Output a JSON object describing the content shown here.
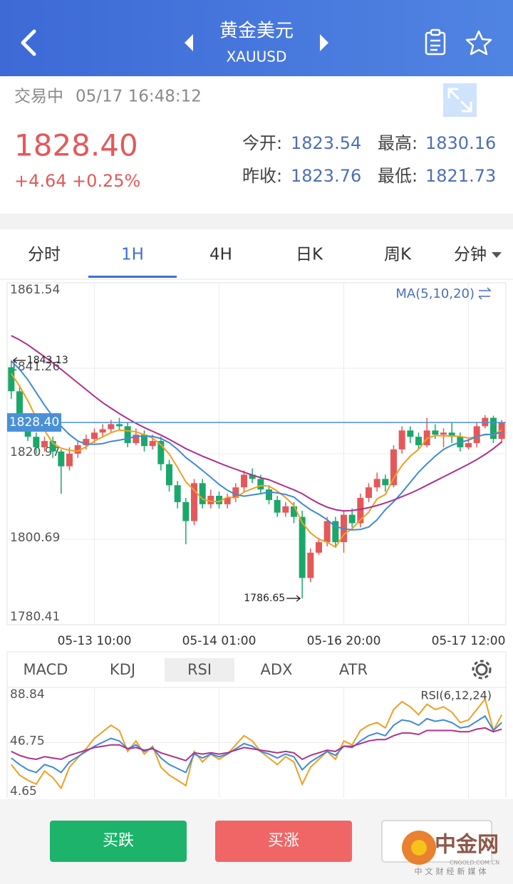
{
  "header": {
    "title": "黄金美元",
    "symbol": "XAUUSD"
  },
  "status": {
    "state": "交易中",
    "time": "05/17 16:48:12"
  },
  "quote": {
    "price": "1828.40",
    "change": "+4.64",
    "change_pct": "+0.25%",
    "stats": [
      {
        "label": "今开:",
        "value": "1823.54"
      },
      {
        "label": "最高:",
        "value": "1830.16"
      },
      {
        "label": "昨收:",
        "value": "1823.76"
      },
      {
        "label": "最低:",
        "value": "1821.73"
      }
    ]
  },
  "tabs": {
    "items": [
      "分时",
      "1H",
      "4H",
      "日K",
      "周K",
      "分钟"
    ],
    "active": 1
  },
  "indicator_tabs": {
    "items": [
      "MACD",
      "KDJ",
      "RSI",
      "ADX",
      "ATR"
    ],
    "active": 2
  },
  "buttons": {
    "sell": "买跌",
    "buy": "买涨"
  },
  "watermark": {
    "brand": "中金网",
    "site": "CNGOLD.COM.CN",
    "slogan": "中文财经新媒体"
  },
  "chart_data": [
    {
      "type": "candlestick",
      "legend": "MA(5,10,20)",
      "up_color": "#e5585a",
      "down_color": "#1aa86a",
      "ylim": [
        1780.41,
        1861.54
      ],
      "yticks": [
        1861.54,
        1841.26,
        1820.97,
        1800.69,
        1780.41
      ],
      "grid": true,
      "current_price": {
        "value": 1828.4,
        "label": "1828.40"
      },
      "categories": [
        null,
        null,
        null,
        null,
        null,
        null,
        null,
        null,
        null,
        null,
        "05-13 10:00",
        null,
        null,
        null,
        null,
        null,
        null,
        null,
        null,
        null,
        null,
        null,
        null,
        null,
        null,
        "05-14 01:00",
        null,
        null,
        null,
        null,
        null,
        null,
        null,
        null,
        null,
        null,
        null,
        null,
        null,
        null,
        "05-16 20:00",
        null,
        null,
        null,
        null,
        null,
        null,
        null,
        null,
        null,
        null,
        null,
        null,
        null,
        null,
        "05-17 12:00",
        null,
        null,
        null,
        null
      ],
      "candles": [
        [
          1841.5,
          1843.13,
          1834,
          1835.8
        ],
        [
          1835.8,
          1837,
          1828,
          1829.5
        ],
        [
          1829.5,
          1830,
          1824,
          1825
        ],
        [
          1825,
          1826,
          1821,
          1822.5
        ],
        [
          1822.5,
          1825,
          1821.5,
          1824
        ],
        [
          1824,
          1825,
          1820,
          1821.5
        ],
        [
          1821.5,
          1822,
          1811.5,
          1818
        ],
        [
          1818,
          1822.5,
          1817,
          1821
        ],
        [
          1821,
          1824,
          1820,
          1823
        ],
        [
          1823,
          1825.5,
          1822,
          1824.5
        ],
        [
          1824.5,
          1827,
          1823.5,
          1826
        ],
        [
          1826,
          1828,
          1825,
          1826.8
        ],
        [
          1826.8,
          1829,
          1826,
          1828
        ],
        [
          1828,
          1829.5,
          1826.5,
          1827.5
        ],
        [
          1827.5,
          1828.5,
          1822.5,
          1823.5
        ],
        [
          1823.5,
          1827,
          1823,
          1825.5
        ],
        [
          1825.5,
          1826.5,
          1821.5,
          1822.8
        ],
        [
          1822.8,
          1825.5,
          1822,
          1824
        ],
        [
          1824,
          1825,
          1817,
          1818.5
        ],
        [
          1818.5,
          1819.5,
          1812,
          1813.5
        ],
        [
          1813.5,
          1814.5,
          1808,
          1809.5
        ],
        [
          1809.5,
          1810.5,
          1799.5,
          1805
        ],
        [
          1805,
          1815,
          1804,
          1814
        ],
        [
          1814,
          1815,
          1808,
          1809
        ],
        [
          1809,
          1812.5,
          1808,
          1811
        ],
        [
          1811,
          1812,
          1808,
          1809
        ],
        [
          1809,
          1811.5,
          1808,
          1810.5
        ],
        [
          1810.5,
          1814,
          1809.5,
          1813
        ],
        [
          1813,
          1817,
          1812,
          1816
        ],
        [
          1816,
          1817.5,
          1814,
          1815
        ],
        [
          1815,
          1816,
          1811.5,
          1812.5
        ],
        [
          1812.5,
          1813.5,
          1809,
          1810
        ],
        [
          1810,
          1811,
          1806,
          1807
        ],
        [
          1807,
          1809.5,
          1806,
          1808.5
        ],
        [
          1808.5,
          1809.5,
          1804.5,
          1806
        ],
        [
          1806,
          1807.5,
          1786.65,
          1791.5
        ],
        [
          1791.5,
          1798.5,
          1790.5,
          1797.5
        ],
        [
          1797.5,
          1801,
          1797,
          1800
        ],
        [
          1800,
          1806,
          1799,
          1805
        ],
        [
          1805,
          1806,
          1799,
          1800
        ],
        [
          1800,
          1807.5,
          1797.5,
          1806.5
        ],
        [
          1806.5,
          1808,
          1803.5,
          1804.5
        ],
        [
          1804.5,
          1811.5,
          1803.5,
          1810.5
        ],
        [
          1810.5,
          1814,
          1809.5,
          1813
        ],
        [
          1813,
          1816.5,
          1812,
          1815
        ],
        [
          1815,
          1816,
          1812,
          1813.5
        ],
        [
          1813.5,
          1823,
          1813,
          1822
        ],
        [
          1822,
          1827.5,
          1821,
          1826.5
        ],
        [
          1826.5,
          1827.5,
          1823.5,
          1825
        ],
        [
          1825,
          1826,
          1822,
          1823
        ],
        [
          1823,
          1829.5,
          1822.5,
          1826.5
        ],
        [
          1826.5,
          1828,
          1824.5,
          1825.5
        ],
        [
          1825.5,
          1827,
          1822.5,
          1826
        ],
        [
          1826,
          1828.5,
          1823.5,
          1825
        ],
        [
          1825,
          1826,
          1821.5,
          1822.5
        ],
        [
          1822.5,
          1824.5,
          1822,
          1823.5
        ],
        [
          1823.5,
          1828.5,
          1822.5,
          1827.5
        ],
        [
          1827.5,
          1830.16,
          1827,
          1829.5
        ],
        [
          1829.5,
          1830,
          1823.5,
          1824.5
        ],
        [
          1824.5,
          1829,
          1823.5,
          1828.4
        ]
      ],
      "ma": [
        {
          "color": "#f0a020",
          "values": [
            1840.0,
            1837.0,
            1833.5,
            1829.5,
            1826.5,
            1823.5,
            1822.3,
            1821.8,
            1821.6,
            1822.6,
            1824.0,
            1825.0,
            1826.0,
            1826.6,
            1826.4,
            1826.2,
            1825.5,
            1824.7,
            1823.1,
            1820.9,
            1817.7,
            1814.3,
            1812.3,
            1810.2,
            1809.7,
            1809.6,
            1810.7,
            1810.5,
            1811.9,
            1812.7,
            1813.4,
            1813.3,
            1812.1,
            1810.6,
            1808.7,
            1804.6,
            1802.2,
            1800.7,
            1800.0,
            1798.8,
            1801.8,
            1803.2,
            1805.3,
            1807.1,
            1810.3,
            1811.3,
            1815.2,
            1818.2,
            1820.4,
            1822.0,
            1824.6,
            1825.3,
            1825.2,
            1825.2,
            1825.1,
            1824.7,
            1825.0,
            1825.6,
            1825.5,
            1826.6
          ]
        },
        {
          "color": "#3f8ad8",
          "values": [
            1843.0,
            1841.0,
            1838.5,
            1835.5,
            1832.5,
            1829.8,
            1827.5,
            1825.5,
            1824.0,
            1823.3,
            1823.2,
            1823.4,
            1823.9,
            1824.2,
            1824.6,
            1825.1,
            1825.2,
            1825.1,
            1824.6,
            1823.6,
            1822.0,
            1820.1,
            1818.6,
            1817.0,
            1815.4,
            1813.7,
            1812.3,
            1811.3,
            1810.9,
            1811.2,
            1811.5,
            1811.9,
            1811.7,
            1811.3,
            1810.7,
            1809.1,
            1807.7,
            1806.6,
            1805.3,
            1803.7,
            1803.2,
            1802.9,
            1803.0,
            1803.6,
            1805.3,
            1807.7,
            1809.6,
            1811.8,
            1814.2,
            1816.6,
            1818.6,
            1820.4,
            1822.0,
            1823.0,
            1823.7,
            1824.2,
            1825.1,
            1825.5,
            1825.6,
            1826.1
          ]
        },
        {
          "color": "#b0308a",
          "values": [
            1849.0,
            1848.0,
            1846.8,
            1845.4,
            1844.0,
            1842.5,
            1841.0,
            1839.4,
            1837.8,
            1836.2,
            1834.6,
            1833.1,
            1831.8,
            1830.5,
            1829.3,
            1828.2,
            1827.2,
            1826.3,
            1825.4,
            1824.4,
            1823.3,
            1822.2,
            1821.3,
            1820.4,
            1819.6,
            1818.8,
            1818.0,
            1817.3,
            1816.6,
            1815.9,
            1815.3,
            1814.8,
            1814.0,
            1813.2,
            1812.4,
            1811.5,
            1810.3,
            1809.2,
            1808.3,
            1807.7,
            1807.4,
            1807.5,
            1807.8,
            1808.2,
            1808.7,
            1809.3,
            1810.0,
            1810.8,
            1811.6,
            1812.5,
            1813.5,
            1814.5,
            1815.5,
            1816.5,
            1817.5,
            1818.5,
            1819.6,
            1820.8,
            1822.2,
            1823.8
          ]
        }
      ]
    },
    {
      "type": "line",
      "legend": "RSI(6,12,24)",
      "ylim": [
        4.65,
        88.84
      ],
      "yticks": [
        88.84,
        46.75,
        4.65
      ],
      "grid": true,
      "series": [
        {
          "color": "#f0a020",
          "values": [
            30,
            22,
            18,
            15,
            25,
            20,
            12,
            28,
            35,
            42,
            50,
            55,
            60,
            56,
            40,
            48,
            38,
            44,
            28,
            22,
            18,
            14,
            40,
            32,
            38,
            34,
            38,
            45,
            52,
            48,
            40,
            35,
            30,
            36,
            32,
            15,
            28,
            34,
            40,
            34,
            48,
            45,
            56,
            60,
            62,
            58,
            72,
            78,
            74,
            68,
            76,
            72,
            74,
            70,
            62,
            64,
            72,
            80,
            56,
            68
          ]
        },
        {
          "color": "#3f8ad8",
          "values": [
            35,
            30,
            26,
            24,
            30,
            28,
            24,
            32,
            36,
            40,
            44,
            47,
            50,
            48,
            42,
            45,
            40,
            43,
            35,
            30,
            27,
            24,
            38,
            35,
            38,
            36,
            38,
            42,
            46,
            44,
            40,
            38,
            35,
            38,
            36,
            26,
            32,
            36,
            40,
            37,
            44,
            43,
            48,
            52,
            54,
            52,
            60,
            64,
            63,
            60,
            65,
            63,
            64,
            62,
            58,
            59,
            63,
            67,
            56,
            62
          ]
        },
        {
          "color": "#b0308a",
          "values": [
            40,
            37,
            35,
            34,
            36,
            35,
            34,
            37,
            39,
            41,
            43,
            44,
            45,
            45,
            42,
            43,
            41,
            42,
            39,
            37,
            35,
            33,
            39,
            38,
            39,
            38,
            39,
            41,
            43,
            42,
            41,
            40,
            39,
            40,
            39,
            34,
            37,
            39,
            41,
            40,
            44,
            44,
            46,
            48,
            49,
            49,
            52,
            54,
            54,
            53,
            56,
            56,
            56,
            56,
            55,
            55,
            57,
            58,
            55,
            57
          ]
        }
      ]
    }
  ]
}
